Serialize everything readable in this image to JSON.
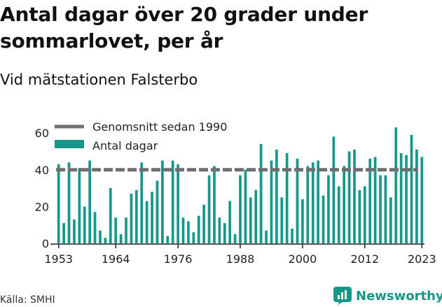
{
  "title": "Antal dagar över 20 grader under sommarlovet, per år",
  "subtitle": "Vid mätstationen Falsterbo",
  "source": "Källa: SMHI",
  "brand": "Newsworthy",
  "colors": {
    "bar": "#16978a",
    "bar_light": "#cfecea",
    "reference": "#6f6f6f",
    "axis": "#222222",
    "text": "#222222"
  },
  "chart_data": {
    "type": "bar",
    "title": "Antal dagar över 20 grader under sommarlovet, per år",
    "subtitle": "Vid mätstationen Falsterbo",
    "xlabel": "",
    "ylabel": "",
    "ylim": [
      0,
      65
    ],
    "yticks": [
      0,
      20,
      40,
      60
    ],
    "xticks": [
      "1953",
      "1964",
      "1976",
      "1988",
      "2000",
      "2012",
      "2023"
    ],
    "grid": false,
    "legend_position": "top-left",
    "legend": [
      {
        "label": "Genomsnitt sedan 1990",
        "kind": "line"
      },
      {
        "label": "Antal dagar",
        "kind": "bar"
      }
    ],
    "reference_line": {
      "name": "Genomsnitt sedan 1990",
      "value": 40,
      "from": 1953,
      "to": 2022
    },
    "series": [
      {
        "name": "Antal dagar",
        "x": [
          1953,
          1954,
          1955,
          1956,
          1957,
          1958,
          1959,
          1960,
          1961,
          1962,
          1963,
          1964,
          1965,
          1966,
          1967,
          1968,
          1969,
          1970,
          1971,
          1972,
          1973,
          1974,
          1975,
          1976,
          1977,
          1978,
          1979,
          1980,
          1981,
          1982,
          1983,
          1984,
          1985,
          1986,
          1987,
          1988,
          1989,
          1990,
          1991,
          1992,
          1993,
          1994,
          1995,
          1996,
          1997,
          1998,
          1999,
          2000,
          2001,
          2002,
          2003,
          2004,
          2005,
          2006,
          2007,
          2008,
          2009,
          2010,
          2011,
          2012,
          2013,
          2014,
          2015,
          2016,
          2017,
          2018,
          2019,
          2020,
          2021,
          2022,
          2023
        ],
        "values": [
          43,
          11,
          44,
          13,
          41,
          20,
          45,
          17,
          7,
          3,
          30,
          14,
          5,
          14,
          27,
          29,
          44,
          23,
          28,
          34,
          45,
          4,
          45,
          43,
          14,
          12,
          6,
          15,
          21,
          37,
          42,
          14,
          11,
          23,
          5,
          37,
          40,
          25,
          29,
          54,
          7,
          45,
          51,
          25,
          49,
          8,
          46,
          24,
          42,
          44,
          45,
          26,
          37,
          58,
          31,
          42,
          50,
          51,
          29,
          31,
          46,
          47,
          37,
          37,
          25,
          63,
          49,
          48,
          59,
          51,
          47
        ]
      }
    ]
  }
}
